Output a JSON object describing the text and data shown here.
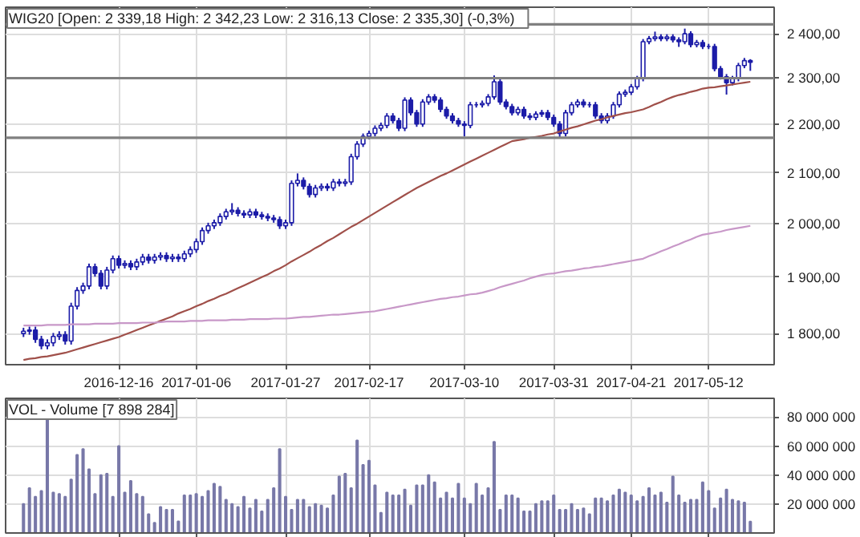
{
  "chart_data": [
    {
      "type": "candlestick",
      "title": "WIG20 [Open: 2 339,18  High: 2 342,23  Low: 2 316,13  Close: 2 335,30] (-0,3%)",
      "categories": [
        null,
        null,
        null,
        null,
        null,
        null,
        null,
        null,
        null,
        null,
        null,
        null,
        null,
        null,
        null,
        null,
        "2016-12-16",
        null,
        null,
        null,
        null,
        null,
        null,
        null,
        null,
        null,
        null,
        null,
        null,
        "2017-01-06",
        null,
        null,
        null,
        null,
        null,
        null,
        null,
        null,
        null,
        null,
        null,
        null,
        null,
        null,
        "2017-01-27",
        null,
        null,
        null,
        null,
        null,
        null,
        null,
        null,
        null,
        null,
        null,
        null,
        null,
        "2017-02-17",
        null,
        null,
        null,
        null,
        null,
        null,
        null,
        null,
        null,
        null,
        null,
        null,
        null,
        null,
        null,
        "2017-03-10",
        null,
        null,
        null,
        null,
        null,
        null,
        null,
        null,
        null,
        null,
        null,
        null,
        null,
        null,
        "2017-03-31",
        null,
        null,
        null,
        null,
        null,
        null,
        null,
        null,
        null,
        null,
        null,
        null,
        "2017-04-21",
        null,
        null,
        null,
        null,
        null,
        null,
        null,
        null,
        null,
        null,
        null,
        null,
        "2017-05-12",
        null,
        null,
        null,
        null,
        null,
        null,
        null
      ],
      "ylim": [
        1747,
        2462
      ],
      "yticks": [
        {
          "value": 1800,
          "label": "1 800,00"
        },
        {
          "value": 1900,
          "label": "1 900,00"
        },
        {
          "value": 2000,
          "label": "2 000,00"
        },
        {
          "value": 2100,
          "label": "2 100,00"
        },
        {
          "value": 2200,
          "label": "2 200,00"
        },
        {
          "value": 2300,
          "label": "2 300,00"
        },
        {
          "value": 2400,
          "label": "2 400,00"
        }
      ],
      "log": true,
      "grid": true,
      "ref_lines": [
        {
          "axis": "y",
          "value": 2422,
          "color": "#808080"
        },
        {
          "axis": "y",
          "value": 2300,
          "color": "#808080"
        },
        {
          "axis": "y",
          "value": 2172,
          "color": "#808080"
        }
      ],
      "series": [
        {
          "type": "candlestick",
          "color": "#1c1ca8",
          "ohlc": [
            [
              1800,
              1810,
              1794,
              1804
            ],
            [
              1804,
              1812,
              1798,
              1806
            ],
            [
              1806,
              1812,
              1784,
              1790
            ],
            [
              1790,
              1796,
              1773,
              1779
            ],
            [
              1779,
              1790,
              1773,
              1784
            ],
            [
              1784,
              1801,
              1778,
              1795
            ],
            [
              1795,
              1804,
              1789,
              1798
            ],
            [
              1798,
              1804,
              1781,
              1787
            ],
            [
              1787,
              1854,
              1781,
              1848
            ],
            [
              1848,
              1882,
              1842,
              1876
            ],
            [
              1876,
              1890,
              1870,
              1884
            ],
            [
              1884,
              1925,
              1878,
              1919
            ],
            [
              1919,
              1925,
              1901,
              1907
            ],
            [
              1907,
              1913,
              1878,
              1884
            ],
            [
              1884,
              1919,
              1878,
              1913
            ],
            [
              1913,
              1940,
              1907,
              1934
            ],
            [
              1934,
              1940,
              1916,
              1922
            ],
            [
              1922,
              1931,
              1916,
              1925
            ],
            [
              1925,
              1931,
              1913,
              1919
            ],
            [
              1919,
              1934,
              1913,
              1928
            ],
            [
              1928,
              1943,
              1922,
              1937
            ],
            [
              1937,
              1943,
              1925,
              1931
            ],
            [
              1931,
              1943,
              1925,
              1937
            ],
            [
              1937,
              1946,
              1931,
              1940
            ],
            [
              1940,
              1946,
              1928,
              1934
            ],
            [
              1934,
              1943,
              1928,
              1937
            ],
            [
              1937,
              1943,
              1928,
              1934
            ],
            [
              1934,
              1949,
              1928,
              1943
            ],
            [
              1943,
              1957,
              1937,
              1951
            ],
            [
              1951,
              1972,
              1945,
              1966
            ],
            [
              1966,
              1993,
              1960,
              1987
            ],
            [
              1987,
              2002,
              1981,
              1996
            ],
            [
              1996,
              2008,
              1990,
              2002
            ],
            [
              2002,
              2020,
              1996,
              2014
            ],
            [
              2014,
              2029,
              2008,
              2023
            ],
            [
              2023,
              2040,
              2017,
              2026
            ],
            [
              2026,
              2032,
              2014,
              2020
            ],
            [
              2020,
              2026,
              2011,
              2017
            ],
            [
              2017,
              2029,
              2011,
              2023
            ],
            [
              2023,
              2029,
              2011,
              2017
            ],
            [
              2017,
              2023,
              2008,
              2014
            ],
            [
              2014,
              2020,
              2005,
              2011
            ],
            [
              2011,
              2017,
              2002,
              2008
            ],
            [
              2008,
              2014,
              1990,
              1996
            ],
            [
              1996,
              2008,
              1990,
              2002
            ],
            [
              2002,
              2085,
              1996,
              2079
            ],
            [
              2079,
              2099,
              2073,
              2085
            ],
            [
              2085,
              2091,
              2067,
              2073
            ],
            [
              2073,
              2079,
              2051,
              2057
            ],
            [
              2057,
              2076,
              2051,
              2070
            ],
            [
              2070,
              2079,
              2064,
              2073
            ],
            [
              2073,
              2079,
              2064,
              2070
            ],
            [
              2070,
              2088,
              2064,
              2082
            ],
            [
              2082,
              2088,
              2073,
              2079
            ],
            [
              2079,
              2088,
              2073,
              2082
            ],
            [
              2082,
              2139,
              2076,
              2133
            ],
            [
              2133,
              2165,
              2127,
              2159
            ],
            [
              2159,
              2181,
              2153,
              2175
            ],
            [
              2175,
              2187,
              2169,
              2181
            ],
            [
              2181,
              2198,
              2175,
              2192
            ],
            [
              2192,
              2204,
              2186,
              2198
            ],
            [
              2198,
              2224,
              2192,
              2218
            ],
            [
              2218,
              2224,
              2202,
              2208
            ],
            [
              2208,
              2214,
              2186,
              2192
            ],
            [
              2192,
              2258,
              2186,
              2252
            ],
            [
              2252,
              2258,
              2219,
              2225
            ],
            [
              2225,
              2231,
              2195,
              2201
            ],
            [
              2201,
              2254,
              2195,
              2248
            ],
            [
              2248,
              2265,
              2242,
              2259
            ],
            [
              2259,
              2265,
              2246,
              2252
            ],
            [
              2252,
              2258,
              2226,
              2232
            ],
            [
              2232,
              2238,
              2212,
              2218
            ],
            [
              2218,
              2224,
              2202,
              2208
            ],
            [
              2208,
              2214,
              2195,
              2201
            ],
            [
              2201,
              2207,
              2175,
              2198
            ],
            [
              2198,
              2248,
              2192,
              2242
            ],
            [
              2242,
              2248,
              2236,
              2242
            ],
            [
              2242,
              2251,
              2236,
              2245
            ],
            [
              2245,
              2265,
              2239,
              2259
            ],
            [
              2259,
              2306,
              2253,
              2292
            ],
            [
              2292,
              2298,
              2242,
              2248
            ],
            [
              2248,
              2254,
              2232,
              2238
            ],
            [
              2238,
              2244,
              2219,
              2225
            ],
            [
              2225,
              2238,
              2219,
              2232
            ],
            [
              2232,
              2238,
              2212,
              2218
            ],
            [
              2218,
              2224,
              2209,
              2215
            ],
            [
              2215,
              2228,
              2209,
              2222
            ],
            [
              2222,
              2231,
              2216,
              2225
            ],
            [
              2225,
              2231,
              2209,
              2215
            ],
            [
              2215,
              2221,
              2195,
              2201
            ],
            [
              2201,
              2207,
              2172,
              2181
            ],
            [
              2181,
              2231,
              2175,
              2225
            ],
            [
              2225,
              2248,
              2219,
              2242
            ],
            [
              2242,
              2254,
              2236,
              2248
            ],
            [
              2248,
              2254,
              2236,
              2242
            ],
            [
              2242,
              2248,
              2236,
              2242
            ],
            [
              2242,
              2248,
              2212,
              2218
            ],
            [
              2218,
              2224,
              2202,
              2208
            ],
            [
              2208,
              2224,
              2202,
              2218
            ],
            [
              2218,
              2248,
              2212,
              2242
            ],
            [
              2242,
              2271,
              2236,
              2265
            ],
            [
              2265,
              2275,
              2259,
              2269
            ],
            [
              2269,
              2287,
              2263,
              2281
            ],
            [
              2281,
              2305,
              2275,
              2299
            ],
            [
              2299,
              2388,
              2293,
              2382
            ],
            [
              2382,
              2395,
              2376,
              2389
            ],
            [
              2389,
              2405,
              2383,
              2393
            ],
            [
              2393,
              2399,
              2383,
              2389
            ],
            [
              2389,
              2399,
              2383,
              2393
            ],
            [
              2393,
              2399,
              2380,
              2386
            ],
            [
              2386,
              2392,
              2370,
              2382
            ],
            [
              2382,
              2412,
              2376,
              2400
            ],
            [
              2400,
              2406,
              2369,
              2375
            ],
            [
              2375,
              2386,
              2369,
              2380
            ],
            [
              2380,
              2386,
              2365,
              2371
            ],
            [
              2371,
              2377,
              2365,
              2371
            ],
            [
              2371,
              2377,
              2315,
              2321
            ],
            [
              2321,
              2327,
              2297,
              2303
            ],
            [
              2303,
              2309,
              2264,
              2290
            ],
            [
              2290,
              2305,
              2284,
              2299
            ],
            [
              2299,
              2334,
              2293,
              2328
            ],
            [
              2328,
              2345,
              2322,
              2339
            ],
            [
              2339.18,
              2342.23,
              2316.13,
              2335.3
            ]
          ]
        },
        {
          "type": "line",
          "color": "#a0504a",
          "values": [
            1755,
            1757,
            1758,
            1760,
            1761,
            1763,
            1765,
            1767,
            1770,
            1773,
            1776,
            1779,
            1782,
            1785,
            1788,
            1791,
            1794,
            1798,
            1802,
            1806,
            1810,
            1814,
            1818,
            1822,
            1826,
            1830,
            1835,
            1839,
            1843,
            1848,
            1852,
            1857,
            1861,
            1866,
            1870,
            1875,
            1880,
            1885,
            1890,
            1895,
            1900,
            1905,
            1911,
            1916,
            1922,
            1929,
            1935,
            1941,
            1947,
            1954,
            1960,
            1967,
            1973,
            1980,
            1987,
            1994,
            2000,
            2007,
            2014,
            2021,
            2028,
            2035,
            2042,
            2049,
            2056,
            2063,
            2070,
            2076,
            2082,
            2088,
            2094,
            2099,
            2105,
            2111,
            2117,
            2123,
            2129,
            2135,
            2141,
            2147,
            2153,
            2159,
            2165,
            2167,
            2169,
            2172,
            2174,
            2176,
            2179,
            2181,
            2185,
            2189,
            2193,
            2196,
            2200,
            2204,
            2208,
            2211,
            2215,
            2218,
            2221,
            2224,
            2226,
            2229,
            2232,
            2237,
            2243,
            2248,
            2254,
            2259,
            2263,
            2266,
            2270,
            2273,
            2277,
            2279,
            2280,
            2282,
            2284,
            2286,
            2288,
            2290,
            2292
          ]
        },
        {
          "type": "line",
          "color": "#c898c8",
          "values": [
            1814,
            1814,
            1814,
            1814,
            1815,
            1815,
            1815,
            1815,
            1816,
            1816,
            1816,
            1816,
            1817,
            1817,
            1817,
            1817,
            1818,
            1818,
            1818,
            1818,
            1819,
            1819,
            1819,
            1820,
            1821,
            1821,
            1821,
            1821,
            1822,
            1822,
            1822,
            1823,
            1823,
            1823,
            1823,
            1824,
            1824,
            1824,
            1825,
            1825,
            1825,
            1825,
            1826,
            1826,
            1826,
            1827,
            1828,
            1829,
            1829,
            1830,
            1831,
            1832,
            1833,
            1833,
            1834,
            1835,
            1836,
            1837,
            1838,
            1839,
            1841,
            1843,
            1845,
            1847,
            1849,
            1851,
            1853,
            1855,
            1857,
            1859,
            1861,
            1862,
            1864,
            1865,
            1867,
            1869,
            1870,
            1872,
            1875,
            1878,
            1882,
            1885,
            1888,
            1891,
            1894,
            1898,
            1901,
            1904,
            1906,
            1907,
            1909,
            1911,
            1912,
            1914,
            1916,
            1917,
            1919,
            1920,
            1922,
            1924,
            1926,
            1928,
            1930,
            1932,
            1934,
            1939,
            1943,
            1948,
            1952,
            1957,
            1961,
            1966,
            1970,
            1975,
            1979,
            1981,
            1983,
            1985,
            1988,
            1990,
            1992,
            1994,
            1996
          ]
        }
      ]
    },
    {
      "type": "bar",
      "title": "VOL - Volume [7 898 284]",
      "color": "#7878a8",
      "categories": [
        null,
        null,
        null,
        null,
        null,
        null,
        null,
        null,
        null,
        null,
        null,
        null,
        null,
        null,
        null,
        null,
        "2016-12-16",
        null,
        null,
        null,
        null,
        null,
        null,
        null,
        null,
        null,
        null,
        null,
        null,
        "2017-01-06",
        null,
        null,
        null,
        null,
        null,
        null,
        null,
        null,
        null,
        null,
        null,
        null,
        null,
        null,
        "2017-01-27",
        null,
        null,
        null,
        null,
        null,
        null,
        null,
        null,
        null,
        null,
        null,
        null,
        null,
        "2017-02-17",
        null,
        null,
        null,
        null,
        null,
        null,
        null,
        null,
        null,
        null,
        null,
        null,
        null,
        null,
        null,
        "2017-03-10",
        null,
        null,
        null,
        null,
        null,
        null,
        null,
        null,
        null,
        null,
        null,
        null,
        null,
        null,
        "2017-03-31",
        null,
        null,
        null,
        null,
        null,
        null,
        null,
        null,
        null,
        null,
        null,
        null,
        "2017-04-21",
        null,
        null,
        null,
        null,
        null,
        null,
        null,
        null,
        null,
        null,
        null,
        null,
        "2017-05-12",
        null,
        null,
        null,
        null,
        null,
        null,
        null
      ],
      "values": [
        20000000,
        31000000,
        25000000,
        29000000,
        80000000,
        28000000,
        27000000,
        25000000,
        37000000,
        54000000,
        58000000,
        44000000,
        27000000,
        40000000,
        41000000,
        25000000,
        60000000,
        28000000,
        36000000,
        27000000,
        25000000,
        13000000,
        7000000,
        18000000,
        16000000,
        16000000,
        8000000,
        26000000,
        26000000,
        27000000,
        25000000,
        29000000,
        34000000,
        32000000,
        23000000,
        20000000,
        18000000,
        25000000,
        17000000,
        23000000,
        15000000,
        23000000,
        31000000,
        58000000,
        25000000,
        16000000,
        23000000,
        23000000,
        18000000,
        20000000,
        19000000,
        17000000,
        26000000,
        39000000,
        41000000,
        31000000,
        64000000,
        47000000,
        50000000,
        33000000,
        14000000,
        28000000,
        26000000,
        26000000,
        30000000,
        19000000,
        33000000,
        33000000,
        40000000,
        35000000,
        24000000,
        28000000,
        24000000,
        34000000,
        24000000,
        20000000,
        34000000,
        26000000,
        31000000,
        63000000,
        16000000,
        26000000,
        26000000,
        24000000,
        15000000,
        15000000,
        20000000,
        22000000,
        22000000,
        26000000,
        16000000,
        16000000,
        20000000,
        16000000,
        17000000,
        13000000,
        24000000,
        24000000,
        22000000,
        26000000,
        30000000,
        28000000,
        26000000,
        22000000,
        25000000,
        31000000,
        26000000,
        28000000,
        21000000,
        39000000,
        26000000,
        21000000,
        23000000,
        23000000,
        35000000,
        29000000,
        17000000,
        24000000,
        30000000,
        23000000,
        22000000,
        21000000,
        7898284
      ],
      "ylim": [
        0,
        93000000
      ],
      "yticks": [
        {
          "value": 20000000,
          "label": "20 000 000"
        },
        {
          "value": 40000000,
          "label": "40 000 000"
        },
        {
          "value": 60000000,
          "label": "60 000 000"
        },
        {
          "value": 80000000,
          "label": "80 000 000"
        }
      ],
      "grid": true,
      "tick_labels": "y"
    }
  ]
}
